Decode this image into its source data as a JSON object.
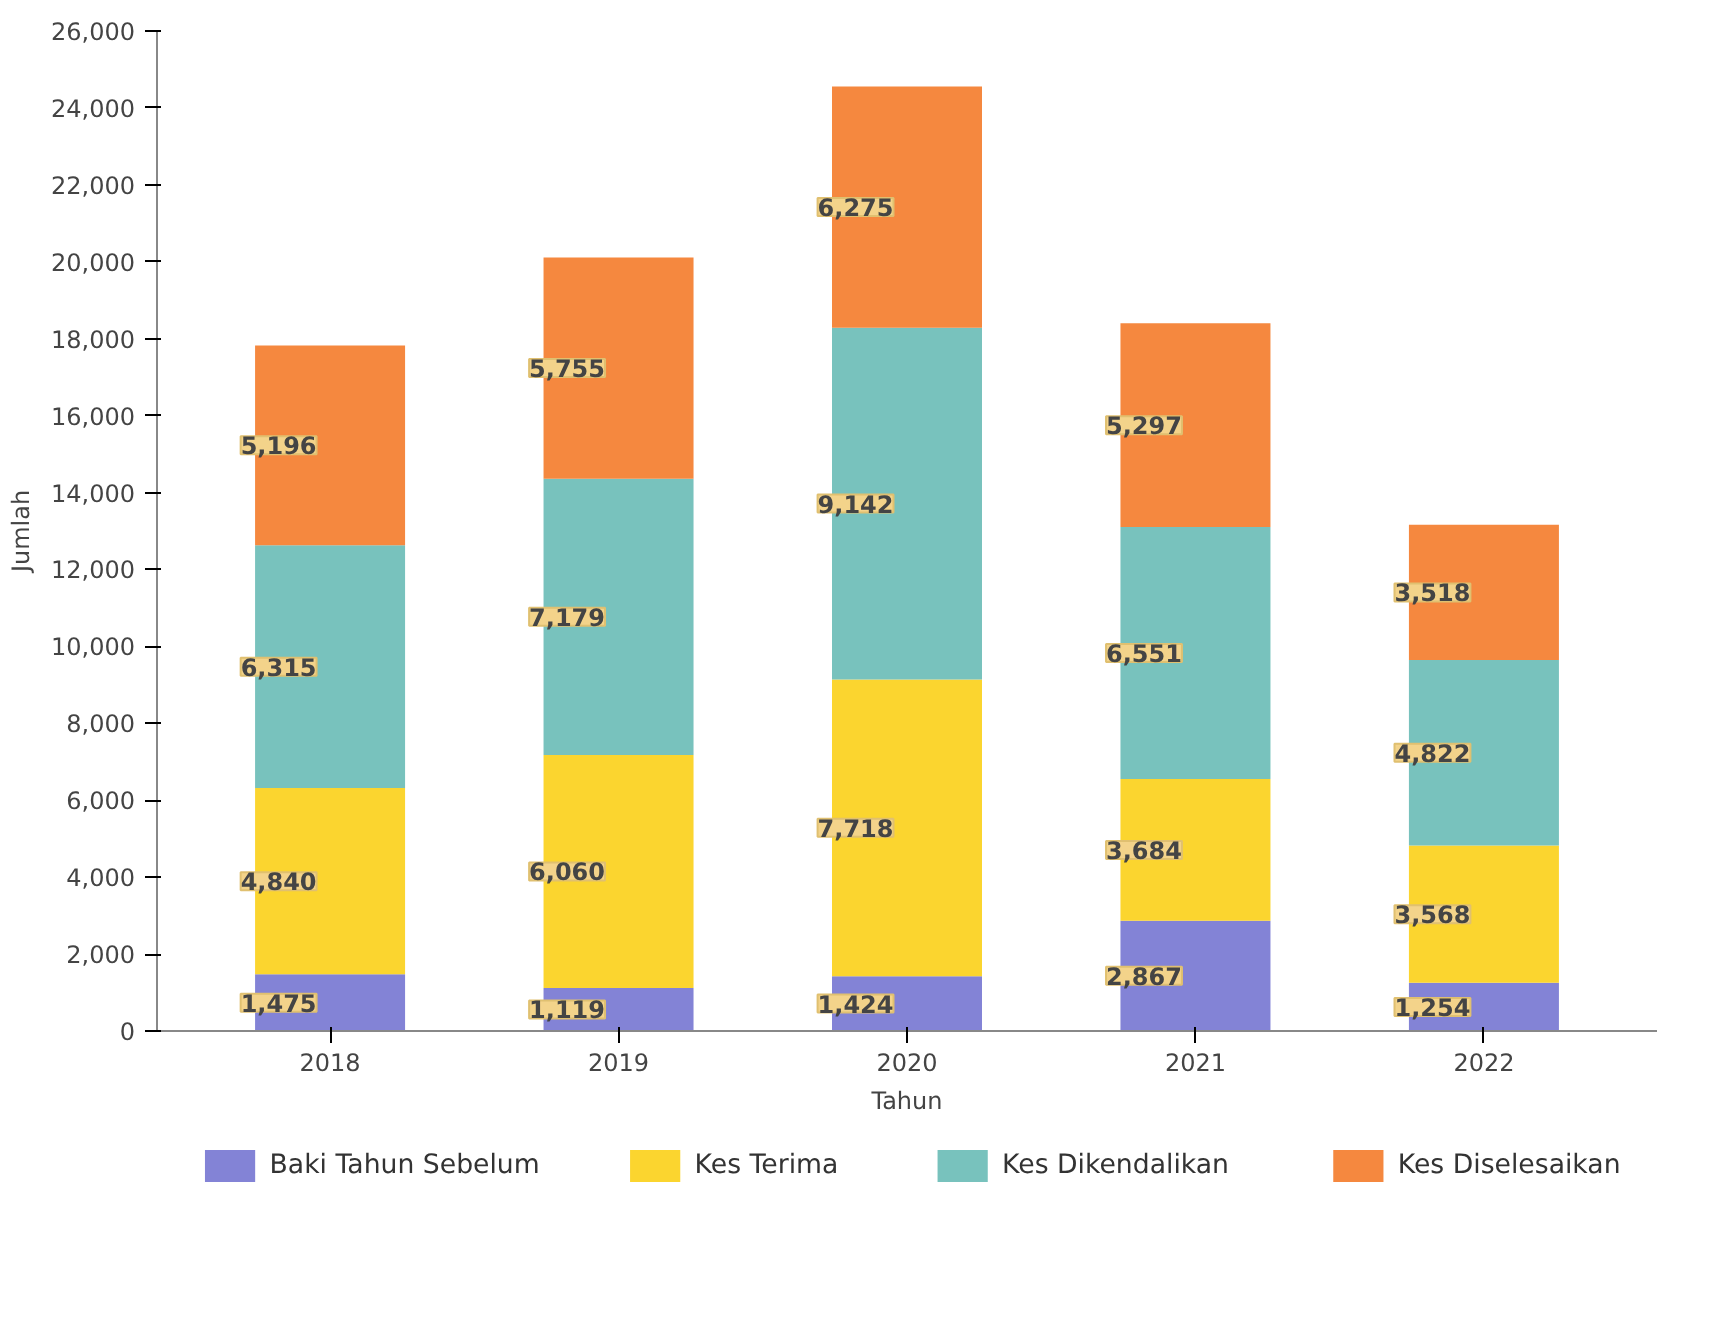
{
  "chart_data": {
    "type": "bar",
    "stacked": true,
    "xlabel": "Tahun",
    "ylabel": "Jumlah",
    "categories": [
      "2018",
      "2019",
      "2020",
      "2021",
      "2022"
    ],
    "series": [
      {
        "name": "Baki Tahun Sebelum",
        "color": "#8383d6",
        "values": [
          1475,
          1119,
          1424,
          2867,
          1254
        ],
        "value_labels": [
          "1,475",
          "1,119",
          "1,424",
          "2,867",
          "1,254"
        ]
      },
      {
        "name": "Kes Terima",
        "color": "#fbd52f",
        "values": [
          4840,
          6060,
          7718,
          3684,
          3568
        ],
        "value_labels": [
          "4,840",
          "6,060",
          "7,718",
          "3,684",
          "3,568"
        ]
      },
      {
        "name": "Kes Dikendalikan",
        "color": "#78c2bd",
        "values": [
          6315,
          7179,
          9142,
          6551,
          4822
        ],
        "value_labels": [
          "6,315",
          "7,179",
          "9,142",
          "6,551",
          "4,822"
        ]
      },
      {
        "name": "Kes Diselesaikan",
        "color": "#f5883f",
        "values": [
          5196,
          5755,
          6275,
          5297,
          3518
        ],
        "value_labels": [
          "5,196",
          "5,755",
          "6,275",
          "5,297",
          "3,518"
        ]
      }
    ],
    "ylim": [
      0,
      26000
    ],
    "yticks": [
      {
        "value": 0,
        "label": "0"
      },
      {
        "value": 2000,
        "label": "2,000"
      },
      {
        "value": 4000,
        "label": "4,000"
      },
      {
        "value": 6000,
        "label": "6,000"
      },
      {
        "value": 8000,
        "label": "8,000"
      },
      {
        "value": 10000,
        "label": "10,000"
      },
      {
        "value": 12000,
        "label": "12,000"
      },
      {
        "value": 14000,
        "label": "14,000"
      },
      {
        "value": 16000,
        "label": "16,000"
      },
      {
        "value": 18000,
        "label": "18,000"
      },
      {
        "value": 20000,
        "label": "20,000"
      },
      {
        "value": 22000,
        "label": "22,000"
      },
      {
        "value": 24000,
        "label": "24,000"
      },
      {
        "value": 26000,
        "label": "26,000"
      }
    ],
    "grid": false,
    "legend": "bottom"
  }
}
